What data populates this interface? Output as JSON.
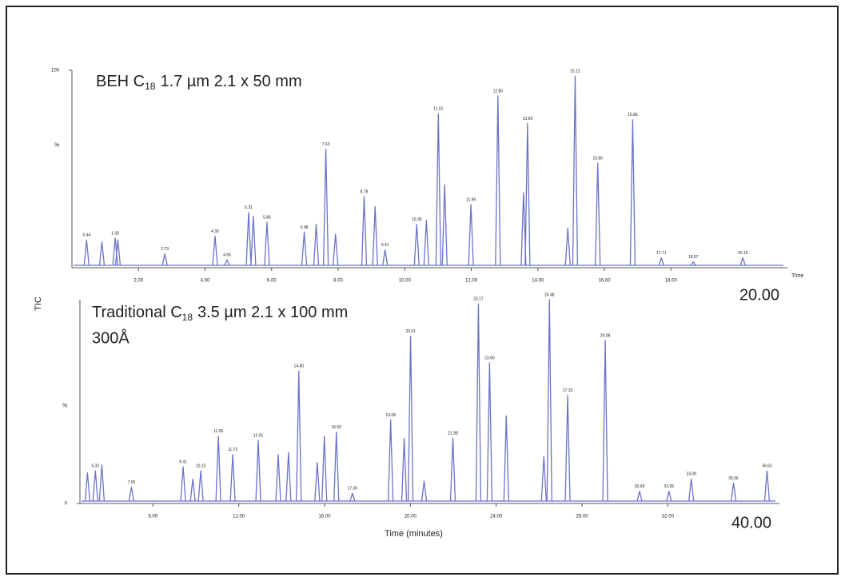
{
  "chart_data": [
    {
      "type": "chromatogram",
      "title": {
        "prefix": "BEH C",
        "subscript": "18",
        "suffix": "1.7 µm 2.1 x 50 mm"
      },
      "end_label": "20.00",
      "x_label": "Time",
      "y_label": "%",
      "shared_y_label": "TIC",
      "color": "#6b72c8",
      "xlim": [
        0,
        21.5
      ],
      "ylim": [
        0,
        100
      ],
      "xticks": [
        {
          "value": 2,
          "label": "2.00"
        },
        {
          "value": 4,
          "label": "4.00"
        },
        {
          "value": 6,
          "label": "6.00"
        },
        {
          "value": 8,
          "label": "8.00"
        },
        {
          "value": 10,
          "label": "10.00"
        },
        {
          "value": 12,
          "label": "12.00"
        },
        {
          "value": 14,
          "label": "14.00"
        },
        {
          "value": 16,
          "label": "16.00"
        },
        {
          "value": 18,
          "label": "18.00"
        }
      ],
      "yticks": [
        100
      ],
      "x": [
        0.44,
        0.9,
        1.3,
        1.38,
        2.79,
        4.3,
        4.66,
        5.31,
        5.45,
        5.86,
        6.98,
        7.34,
        7.63,
        7.92,
        8.78,
        9.11,
        9.41,
        10.36,
        10.65,
        11.01,
        11.2,
        11.99,
        12.8,
        13.57,
        13.69,
        14.9,
        15.12,
        15.8,
        16.85,
        17.71,
        18.67,
        20.16
      ],
      "values": [
        14,
        13,
        15,
        14,
        7,
        16,
        4,
        28,
        26,
        23,
        18,
        22,
        60,
        17,
        36,
        31,
        9,
        22,
        24,
        78,
        42,
        32,
        87,
        38,
        73,
        20,
        97,
        53,
        75,
        5,
        3,
        5
      ],
      "peak_labels": [
        "0.44",
        null,
        "1.30",
        null,
        "2.79",
        "4.30",
        "4.66",
        "5.31",
        null,
        "5.86",
        "6.98",
        null,
        "7.63",
        null,
        "8.78",
        null,
        "9.41",
        "10.36",
        null,
        "11.01",
        null,
        "11.99",
        "12.80",
        null,
        "13.69",
        null,
        "15.12",
        "15.80",
        "16.85",
        "17.71",
        "18.67",
        "20.16"
      ]
    },
    {
      "type": "chromatogram",
      "title": {
        "prefix": "Traditional C",
        "subscript": "18",
        "suffix": "3.5 µm 2.1 x 100 mm"
      },
      "subtitle": "300Å",
      "end_label": "40.00",
      "x_label": "Time (minutes)",
      "y_label": "%",
      "color": "#6b72c8",
      "xlim": [
        4.6,
        37.2
      ],
      "ylim": [
        0,
        100
      ],
      "xticks": [
        {
          "value": 8,
          "label": "8.00"
        },
        {
          "value": 12,
          "label": "12.00"
        },
        {
          "value": 16,
          "label": "16.00"
        },
        {
          "value": 20,
          "label": "20.00"
        },
        {
          "value": 24,
          "label": "24.00"
        },
        {
          "value": 28,
          "label": "28.00"
        },
        {
          "value": 32,
          "label": "32.00"
        }
      ],
      "yticks": [
        0
      ],
      "x": [
        4.95,
        5.32,
        5.62,
        7.0,
        9.41,
        9.86,
        10.23,
        11.05,
        11.72,
        12.91,
        13.84,
        14.32,
        14.8,
        15.66,
        15.99,
        16.55,
        17.3,
        19.08,
        19.71,
        20.01,
        20.64,
        21.98,
        23.17,
        23.69,
        24.47,
        26.22,
        26.48,
        27.33,
        29.08,
        30.68,
        32.05,
        33.09,
        35.06,
        36.62
      ],
      "values": [
        15,
        16,
        19,
        8,
        18,
        12,
        16,
        33,
        24,
        31,
        24,
        25,
        65,
        20,
        33,
        35,
        5,
        41,
        32,
        82,
        11,
        32,
        98,
        69,
        43,
        23,
        100,
        53,
        80,
        6,
        6,
        12,
        10,
        16
      ],
      "peak_labels": [
        null,
        "5.32",
        null,
        "7.00",
        "9.41",
        null,
        "10.23",
        "11.05",
        "11.72",
        "12.91",
        null,
        null,
        "14.80",
        null,
        null,
        "16.55",
        "17.30",
        "19.08",
        null,
        "20.01",
        null,
        "21.98",
        "23.17",
        "23.69",
        null,
        null,
        "26.48",
        "27.33",
        "29.08",
        "30.68",
        "32.05",
        "33.09",
        "35.06",
        "36.62"
      ]
    }
  ]
}
